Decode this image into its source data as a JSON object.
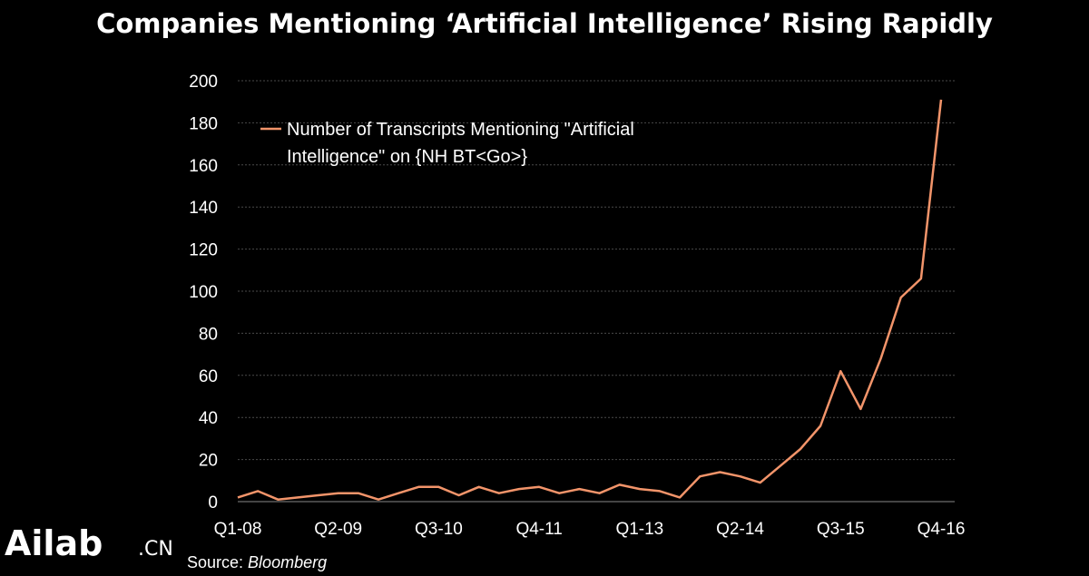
{
  "chart_data": {
    "type": "line",
    "title": "Companies Mentioning ‘Artificial Intelligence’ Rising Rapidly",
    "xlabel": "",
    "ylabel": "",
    "ylim": [
      0,
      200
    ],
    "yticks": [
      0,
      20,
      40,
      60,
      80,
      100,
      120,
      140,
      160,
      180,
      200
    ],
    "xtick_labels": [
      "Q1-08",
      "Q2-09",
      "Q3-10",
      "Q4-11",
      "Q1-13",
      "Q2-14",
      "Q3-15",
      "Q4-16"
    ],
    "x": [
      "Q1-08",
      "Q2-08",
      "Q3-08",
      "Q4-08",
      "Q1-09",
      "Q2-09",
      "Q3-09",
      "Q4-09",
      "Q1-10",
      "Q2-10",
      "Q3-10",
      "Q4-10",
      "Q1-11",
      "Q2-11",
      "Q3-11",
      "Q4-11",
      "Q1-12",
      "Q2-12",
      "Q3-12",
      "Q4-12",
      "Q1-13",
      "Q2-13",
      "Q3-13",
      "Q4-13",
      "Q1-14",
      "Q2-14",
      "Q3-14",
      "Q4-14",
      "Q1-15",
      "Q2-15",
      "Q3-15",
      "Q4-15",
      "Q1-16",
      "Q2-16",
      "Q3-16",
      "Q4-16"
    ],
    "grid": true,
    "legend_position": "top-left",
    "series": [
      {
        "name": "Number of Transcripts Mentioning \"Artificial Intelligence\" on {NH BT<Go>}",
        "color": "#f2946a",
        "values": [
          2,
          5,
          1,
          2,
          3,
          4,
          4,
          1,
          4,
          7,
          7,
          3,
          7,
          4,
          6,
          7,
          4,
          6,
          4,
          8,
          6,
          5,
          2,
          12,
          14,
          12,
          9,
          17,
          25,
          36,
          62,
          44,
          68,
          97,
          106,
          191
        ]
      }
    ],
    "legend_lines": [
      "Number of Transcripts Mentioning \"Artificial",
      "Intelligence\" on {NH BT<Go>}"
    ],
    "source_label": "Source: ",
    "source_name": "Bloomberg"
  },
  "watermark": {
    "text": "Ailab",
    "suffix": ".CN"
  }
}
